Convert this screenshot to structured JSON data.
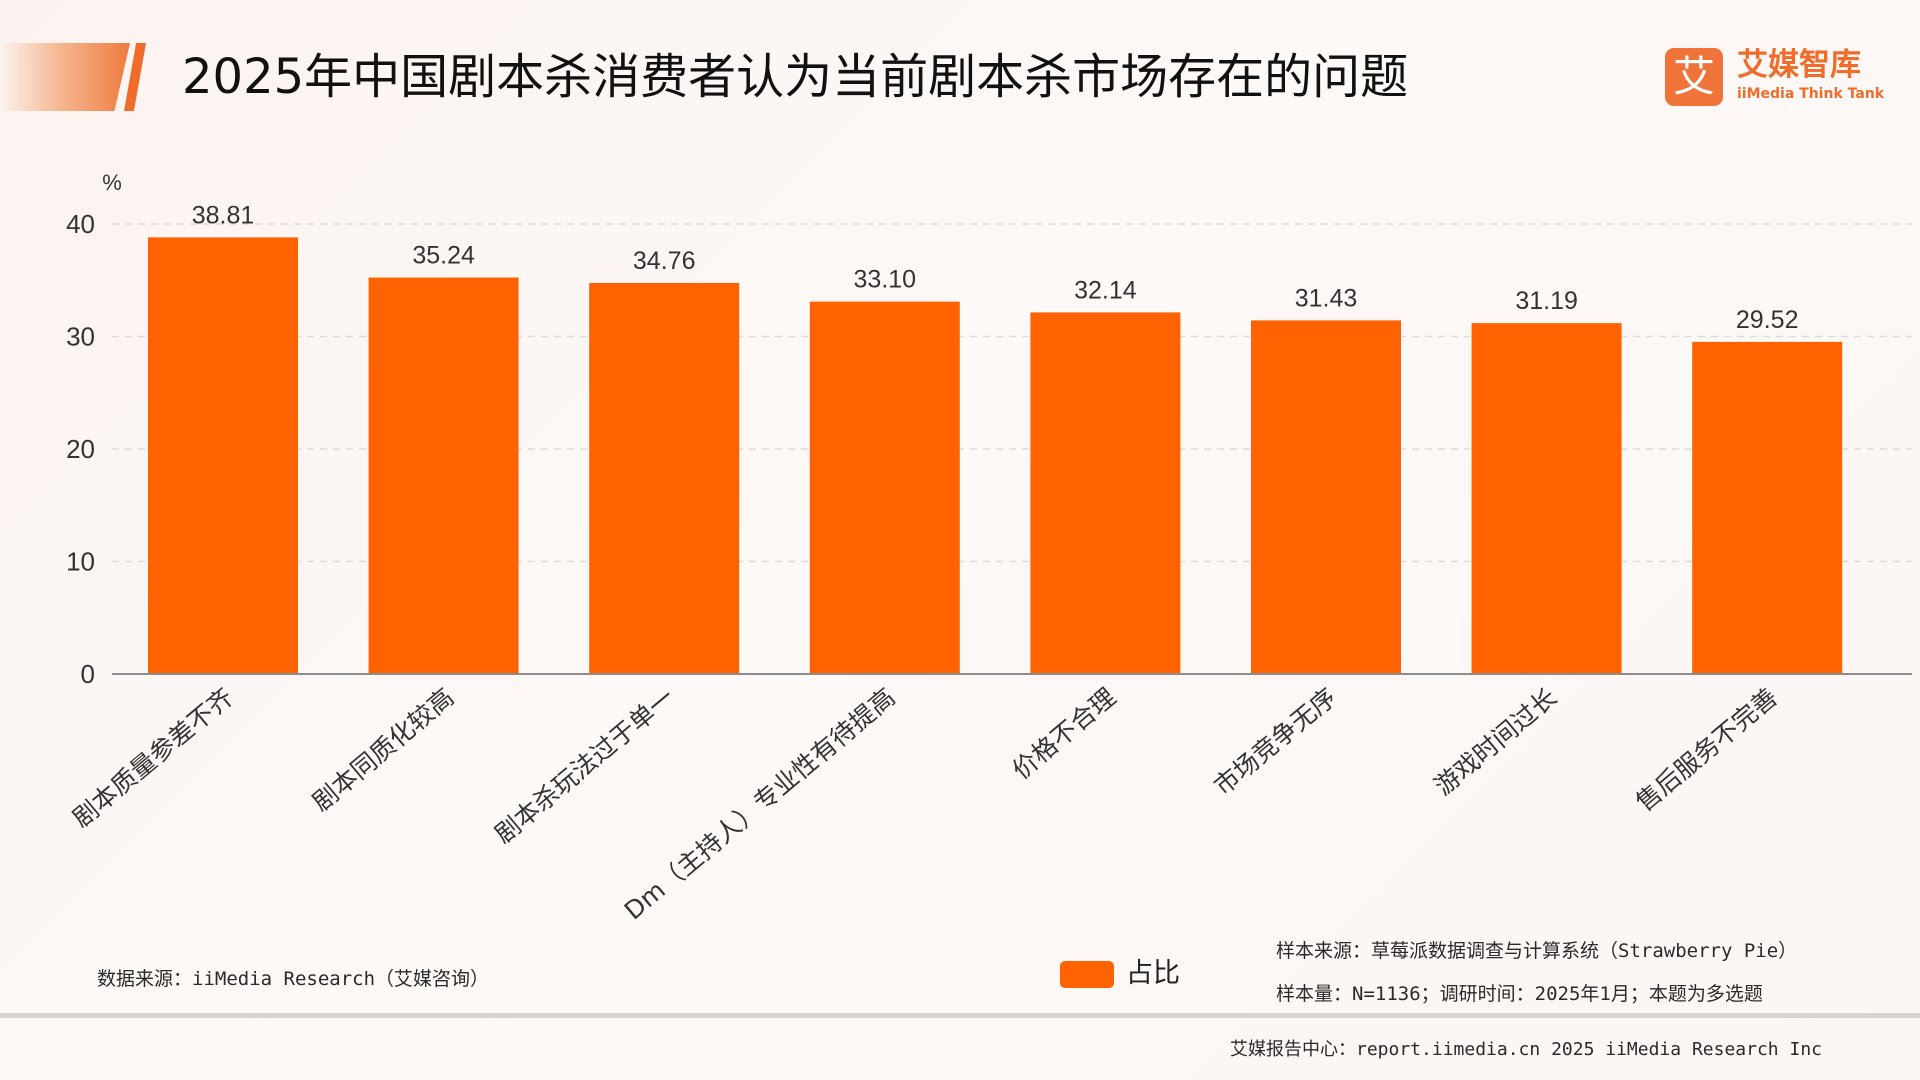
{
  "header": {
    "title": "2025年中国剧本杀消费者认为当前剧本杀市场存在的问题",
    "logo_mark": "艾",
    "logo_cn": "艾媒智库",
    "logo_en": "iiMedia Think Tank"
  },
  "chart_data": {
    "type": "bar",
    "categories": [
      "剧本质量参差不齐",
      "剧本同质化较高",
      "剧本杀玩法过于单一",
      "Dm（主持人）专业性有待提高",
      "价格不合理",
      "市场竞争无序",
      "游戏时间过长",
      "售后服务不完善"
    ],
    "series": [
      {
        "name": "占比",
        "values": [
          38.81,
          35.24,
          34.76,
          33.1,
          32.14,
          31.43,
          31.19,
          29.52
        ]
      }
    ],
    "value_labels": [
      "38.81",
      "35.24",
      "34.76",
      "33.10",
      "32.14",
      "31.43",
      "31.19",
      "29.52"
    ],
    "ylabel": "%",
    "ylim": [
      0,
      40
    ],
    "yticks": [
      "0",
      "10",
      "20",
      "30",
      "40"
    ],
    "grid": true,
    "legend": "bottom",
    "bar_color": "#ff6200"
  },
  "notes": {
    "data_source": "数据来源：iiMedia Research（艾媒咨询）",
    "sample_source": "样本来源：草莓派数据调查与计算系统（Strawberry Pie）",
    "sample_size": "样本量：N=1136；调研时间：2025年1月；本题为多选题"
  },
  "footer": {
    "text": "艾媒报告中心：report.iimedia.cn   2025 iiMedia Research Inc"
  }
}
